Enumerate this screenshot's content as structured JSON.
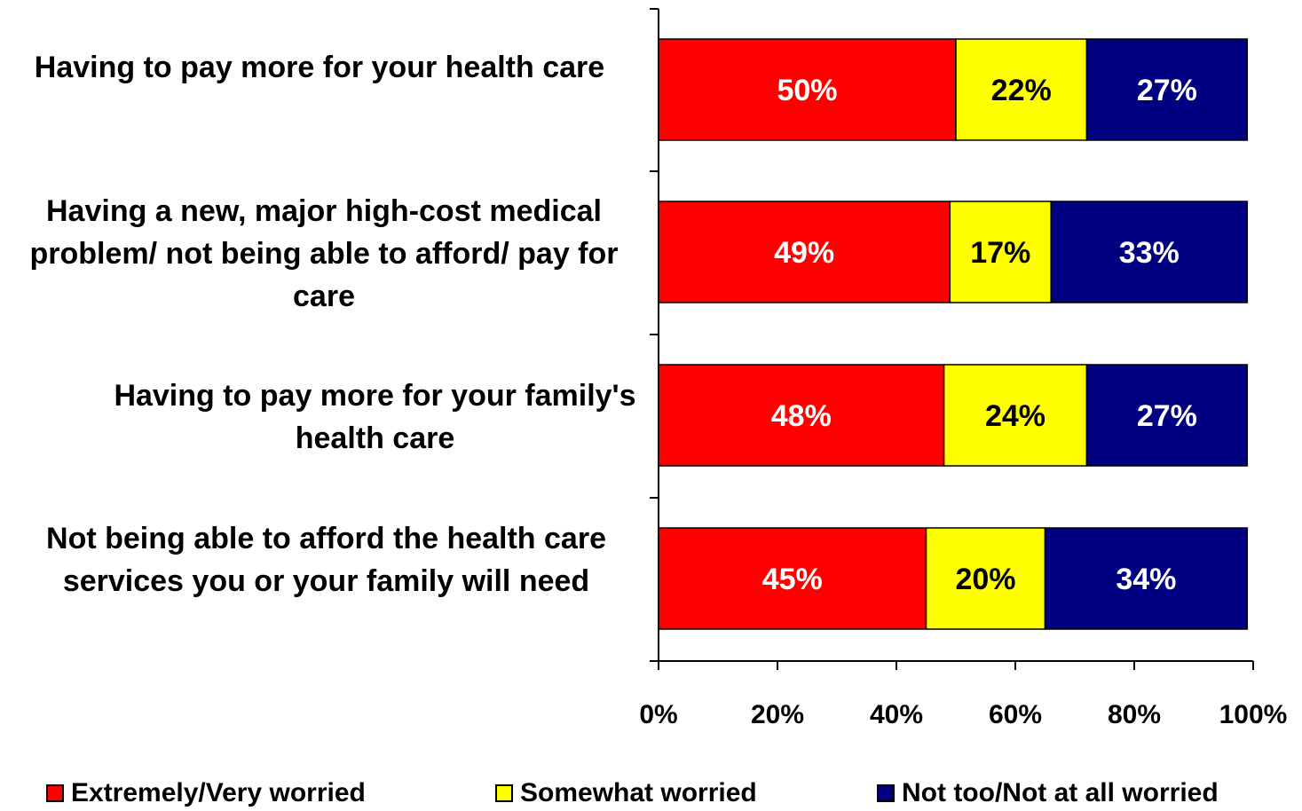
{
  "chart_data": {
    "type": "bar",
    "orientation": "horizontal",
    "stacked": true,
    "categories": [
      "Having to pay more for your health care",
      "Having a new, major high-cost medical problem/ not being able to afford/ pay for care",
      "Having to pay more for your family's health care",
      "Not being able to afford the health care services you or your family will need"
    ],
    "series": [
      {
        "name": "Extremely/Very worried",
        "values": [
          50,
          49,
          48,
          45
        ],
        "labels": [
          "50%",
          "49%",
          "48%",
          "45%"
        ],
        "color": "#ff0000",
        "label_color": "#ffffff"
      },
      {
        "name": "Somewhat worried",
        "values": [
          22,
          17,
          24,
          20
        ],
        "labels": [
          "22%",
          "17%",
          "24%",
          "20%"
        ],
        "color": "#ffff00",
        "label_color": "#000000"
      },
      {
        "name": "Not too/Not at all worried",
        "values": [
          27,
          33,
          27,
          34
        ],
        "labels": [
          "27%",
          "33%",
          "27%",
          "34%"
        ],
        "color": "#000080",
        "label_color": "#ffffff"
      }
    ],
    "xlim": [
      0,
      100
    ],
    "xticks": [
      0,
      20,
      40,
      60,
      80,
      100
    ],
    "xtick_labels": [
      "0%",
      "20%",
      "40%",
      "60%",
      "80%",
      "100%"
    ],
    "grid": false,
    "legend_position": "bottom"
  }
}
